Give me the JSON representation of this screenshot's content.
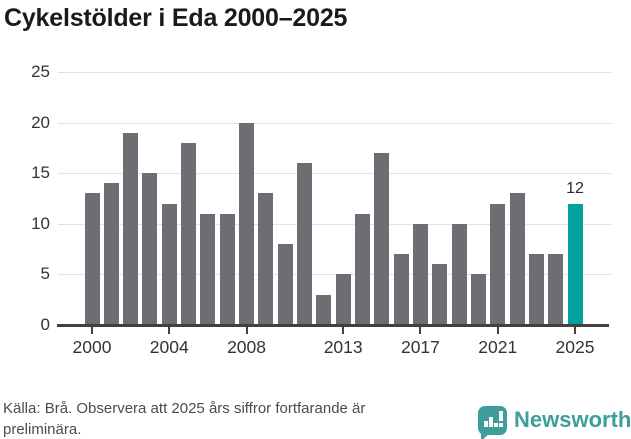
{
  "title": "Cykelstölder i Eda 2000–2025",
  "chart_data": {
    "type": "bar",
    "x": [
      2000,
      2001,
      2002,
      2003,
      2004,
      2005,
      2006,
      2007,
      2008,
      2009,
      2010,
      2011,
      2012,
      2013,
      2014,
      2015,
      2016,
      2017,
      2018,
      2019,
      2020,
      2021,
      2022,
      2023,
      2024,
      2025
    ],
    "values": [
      13,
      14,
      19,
      15,
      12,
      18,
      11,
      11,
      20,
      13,
      8,
      16,
      3,
      5,
      11,
      17,
      7,
      10,
      6,
      10,
      5,
      12,
      13,
      7,
      7,
      12
    ],
    "title": "Cykelstölder i Eda 2000–2025",
    "xlabel": "",
    "ylabel": "",
    "ylim": [
      0,
      25
    ],
    "y_ticks": [
      0,
      5,
      10,
      15,
      20,
      25
    ],
    "x_tick_years": [
      2000,
      2004,
      2008,
      2013,
      2017,
      2021,
      2025
    ],
    "grid": true,
    "legend": "none",
    "bar_color": "#6d6d73",
    "highlight_index": 25,
    "highlight_color": "#00a29e",
    "highlight_label": "12"
  },
  "footer": {
    "source_note": "Källa: Brå. Observera att 2025 års siffror fortfarande är preliminära.",
    "brand_name": "Newsworthy"
  },
  "colors": {
    "bar_gray": "#6d6d73",
    "accent_teal": "#00a29e",
    "brand_teal": "#3f9e9b",
    "gridline": "#e2e2e2",
    "axis": "#404045",
    "tick_label": "#333333",
    "title_text": "#1a1a1a",
    "footer_text": "#4c4c4c"
  }
}
